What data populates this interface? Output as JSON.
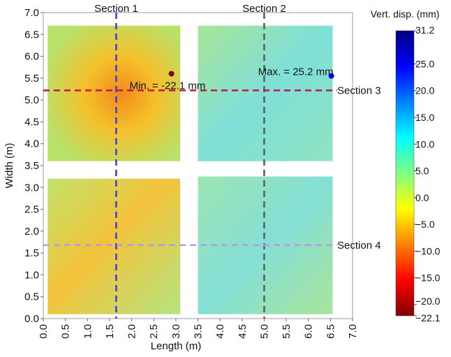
{
  "chart_data": {
    "type": "heatmap",
    "xlabel": "Length (m)",
    "ylabel": "Width (m)",
    "xlim": [
      0,
      7
    ],
    "ylim": [
      0,
      7
    ],
    "xticks": [
      {
        "value": 0,
        "label": "0.0"
      },
      0.5,
      {
        "value": 1,
        "label": "1.0"
      },
      1.5,
      {
        "value": 2,
        "label": "2.0"
      },
      2.5,
      {
        "value": 3,
        "label": "3.0"
      },
      3.5,
      {
        "value": 4,
        "label": "4.0"
      },
      4.5,
      {
        "value": 5,
        "label": "5.0"
      },
      5.5,
      {
        "value": 6,
        "label": "6.0"
      },
      6.5,
      {
        "value": 7,
        "label": "7.0"
      }
    ],
    "yticks": [
      {
        "value": 0,
        "label": "0.0"
      },
      0.5,
      {
        "value": 1,
        "label": "1.0"
      },
      1.5,
      {
        "value": 2,
        "label": "2.0"
      },
      2.5,
      {
        "value": 3,
        "label": "3.0"
      },
      3.5,
      {
        "value": 4,
        "label": "4.0"
      },
      4.5,
      {
        "value": 5,
        "label": "5.0"
      },
      5.5,
      {
        "value": 6,
        "label": "6.0"
      },
      6.5,
      {
        "value": 7,
        "label": "7.0"
      }
    ],
    "panels": [
      {
        "x": [
          0.1,
          3.1
        ],
        "y": [
          3.6,
          6.7
        ]
      },
      {
        "x": [
          3.5,
          6.55
        ],
        "y": [
          3.6,
          6.7
        ]
      },
      {
        "x": [
          0.1,
          3.1
        ],
        "y": [
          0.1,
          3.2
        ]
      },
      {
        "x": [
          3.5,
          6.55
        ],
        "y": [
          0.1,
          3.25
        ]
      }
    ],
    "sections": [
      {
        "name": "Section 1",
        "axis": "x",
        "value": 1.65,
        "color": "#3a3ae0"
      },
      {
        "name": "Section 2",
        "axis": "x",
        "value": 5.0,
        "color": "#5a5a5a"
      },
      {
        "name": "Section 3",
        "axis": "y",
        "value": 5.22,
        "color": "#c0154f"
      },
      {
        "name": "Section 4",
        "axis": "y",
        "value": 1.68,
        "color": "#b49be8"
      }
    ],
    "points": {
      "x": [
        2.9,
        6.52
      ],
      "y": [
        5.6,
        5.55
      ],
      "values": [
        -22.1,
        25.2
      ],
      "labels": [
        "Min. = -22.1 mm",
        "Max. = 25.2 mm"
      ]
    },
    "colorbar": {
      "title": "Vert. disp. (mm)",
      "clim": [
        -22.1,
        31.2
      ],
      "ticks": [
        31.2,
        {
          "value": 25,
          "label": "25.0"
        },
        {
          "value": 20,
          "label": "20.0"
        },
        {
          "value": 15,
          "label": "15.0"
        },
        {
          "value": 10,
          "label": "10.0"
        },
        {
          "value": 5,
          "label": "5.0"
        },
        {
          "value": 0,
          "label": "0.0"
        },
        {
          "value": -5,
          "label": "−5.0"
        },
        {
          "value": -10,
          "label": "−10.0"
        },
        {
          "value": -15,
          "label": "−15.0"
        },
        {
          "value": -20,
          "label": "−20.0"
        },
        {
          "value": -22.1,
          "label": "−22.1"
        }
      ]
    }
  }
}
